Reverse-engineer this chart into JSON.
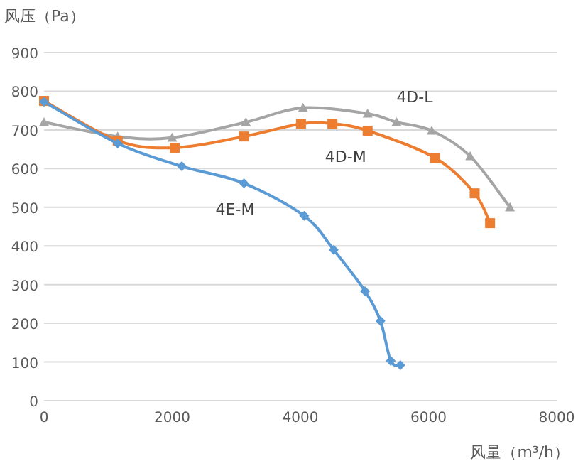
{
  "chart_data": {
    "type": "line",
    "xlabel": "风量（m³/h）",
    "ylabel": "风压（Pa）",
    "xlim": [
      0,
      8000
    ],
    "ylim": [
      0,
      900
    ],
    "xticks": [
      0,
      2000,
      4000,
      6000,
      8000
    ],
    "yticks": [
      0,
      100,
      200,
      300,
      400,
      500,
      600,
      700,
      800,
      900
    ],
    "grid": "y",
    "series": [
      {
        "name": "4E-M",
        "color": "#5b9bd5",
        "marker": "diamond",
        "x": [
          0,
          1150,
          2150,
          3120,
          4060,
          4520,
          5010,
          5250,
          5410,
          5560
        ],
        "values": [
          773,
          665,
          606,
          562,
          478,
          390,
          283,
          206,
          103,
          92
        ]
      },
      {
        "name": "4D-M",
        "color": "#ed7d31",
        "marker": "square",
        "x": [
          0,
          1150,
          2040,
          3120,
          4010,
          4500,
          5050,
          6100,
          6720,
          6960
        ],
        "values": [
          775,
          672,
          654,
          683,
          716,
          716,
          698,
          628,
          536,
          459
        ]
      },
      {
        "name": "4D-L",
        "color": "#a5a5a5",
        "marker": "triangle",
        "x": [
          0,
          1150,
          2000,
          3150,
          4040,
          5050,
          5500,
          6050,
          6650,
          7270
        ],
        "values": [
          720,
          683,
          680,
          720,
          757,
          742,
          720,
          698,
          632,
          500
        ]
      }
    ]
  }
}
